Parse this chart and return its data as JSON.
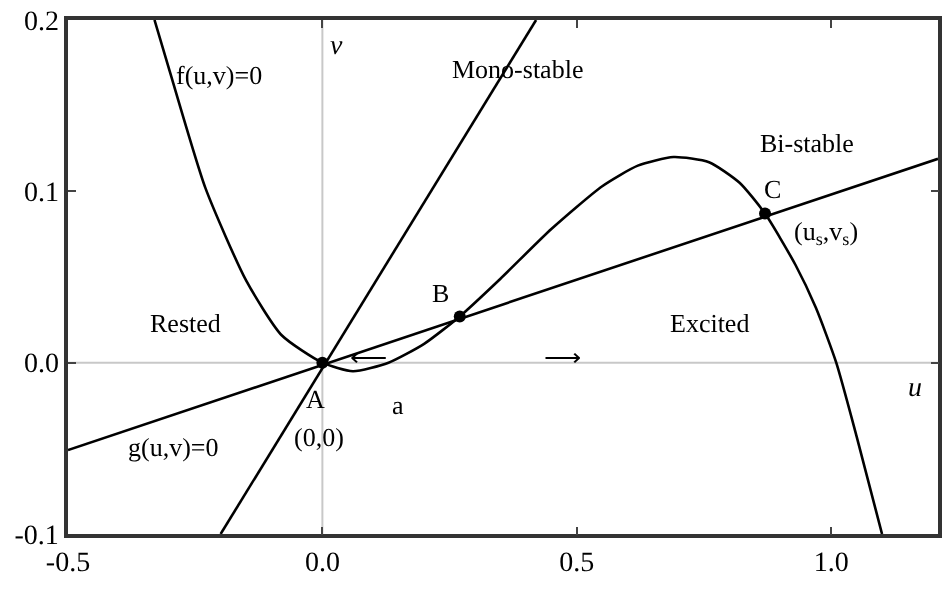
{
  "chart_data": {
    "type": "line",
    "xlim": [
      -0.5,
      1.21
    ],
    "ylim": [
      -0.1,
      0.2
    ],
    "xticks": [
      -0.5,
      {
        "value": 0,
        "label": "0.0"
      },
      0.5,
      {
        "value": 1,
        "label": "1.0"
      }
    ],
    "yticks": [
      -0.1,
      {
        "value": 0,
        "label": "0.0"
      },
      0.1,
      0.2
    ],
    "grid": false,
    "line_style": "solid",
    "series": [
      {
        "color": "#000000",
        "x": [
          -0.33,
          -0.3,
          -0.23,
          -0.15,
          -0.08,
          0,
          0.06,
          0.13,
          0.2,
          0.27,
          0.35,
          0.45,
          0.55,
          0.62,
          0.69,
          0.76,
          0.82,
          0.87,
          0.93,
          0.97,
          1.01,
          1.05,
          1.1
        ],
        "values": [
          0.2,
          0.17,
          0.102,
          0.048,
          0.016,
          0,
          -0.005,
          0,
          0.011,
          0.027,
          0.049,
          0.078,
          0.103,
          0.115,
          0.12,
          0.117,
          0.105,
          0.087,
          0.057,
          0.032,
          0,
          -0.043,
          -0.1
        ]
      },
      {
        "color": "#000000",
        "x": [
          -0.2,
          0.42
        ],
        "values": [
          -0.1,
          0.2
        ]
      },
      {
        "color": "#000000",
        "x": [
          -0.5,
          1.21
        ],
        "values": [
          -0.051,
          0.119
        ]
      },
      {
        "type": "scatter",
        "color": "#000000",
        "marker": "circle",
        "x": [
          0,
          0.27,
          0.87
        ],
        "values": [
          0,
          0.027,
          0.087
        ]
      }
    ],
    "ref_lines": [
      {
        "axis": "x",
        "value": 0,
        "label": "v",
        "color": "#c8c8c8"
      },
      {
        "axis": "y",
        "value": 0,
        "label": "u",
        "color": "#c8c8c8"
      }
    ],
    "annotations": [
      "f(u,v)=0",
      "Mono-stable",
      "Bi-stable",
      "Rested",
      "Excited",
      "g(u,v)=0",
      "⟵",
      "⟶",
      {
        "text": "A",
        "x": 0,
        "y": 0
      },
      {
        "text": "(0,0)",
        "x": 0,
        "y": 0
      },
      {
        "text": "a",
        "x": 0.13,
        "y": 0
      },
      {
        "text": "B",
        "x": 0.27,
        "y": 0.027
      },
      {
        "text": "C",
        "x": 0.87,
        "y": 0.087
      },
      {
        "text": "(u$_{s}$,v$_{s}$)",
        "x": 0.87,
        "y": 0.087
      }
    ]
  }
}
